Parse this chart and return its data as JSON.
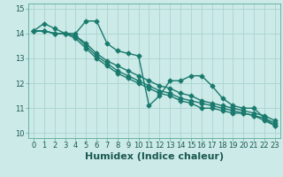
{
  "title": "",
  "xlabel": "Humidex (Indice chaleur)",
  "ylabel": "",
  "bg_color": "#cceae7",
  "line_color": "#1a7a6e",
  "grid_color": "#aad4d0",
  "xlim": [
    -0.5,
    23.5
  ],
  "ylim": [
    9.8,
    15.2
  ],
  "yticks": [
    10,
    11,
    12,
    13,
    14,
    15
  ],
  "xticks": [
    0,
    1,
    2,
    3,
    4,
    5,
    6,
    7,
    8,
    9,
    10,
    11,
    12,
    13,
    14,
    15,
    16,
    17,
    18,
    19,
    20,
    21,
    22,
    23
  ],
  "series": [
    [
      14.1,
      14.4,
      14.2,
      14.0,
      14.0,
      14.5,
      14.5,
      13.6,
      13.3,
      13.2,
      13.1,
      11.1,
      11.5,
      12.1,
      12.1,
      12.3,
      12.3,
      11.9,
      11.4,
      11.1,
      11.0,
      11.0,
      10.6,
      10.3
    ],
    [
      14.1,
      14.1,
      14.0,
      14.0,
      13.9,
      13.6,
      13.2,
      12.9,
      12.7,
      12.5,
      12.3,
      12.1,
      11.9,
      11.8,
      11.6,
      11.5,
      11.3,
      11.2,
      11.1,
      11.0,
      10.9,
      10.8,
      10.7,
      10.5
    ],
    [
      14.1,
      14.1,
      14.0,
      14.0,
      13.9,
      13.5,
      13.1,
      12.8,
      12.5,
      12.3,
      12.1,
      11.9,
      11.7,
      11.6,
      11.4,
      11.3,
      11.2,
      11.1,
      11.0,
      10.9,
      10.8,
      10.7,
      10.6,
      10.4
    ],
    [
      14.1,
      14.1,
      14.0,
      14.0,
      13.8,
      13.4,
      13.0,
      12.7,
      12.4,
      12.2,
      12.0,
      11.8,
      11.6,
      11.5,
      11.3,
      11.2,
      11.0,
      11.0,
      10.9,
      10.8,
      10.8,
      10.7,
      10.5,
      10.3
    ]
  ],
  "marker": "D",
  "markersize": 2.5,
  "linewidth": 1.0,
  "xlabel_fontsize": 8,
  "tick_fontsize": 6
}
